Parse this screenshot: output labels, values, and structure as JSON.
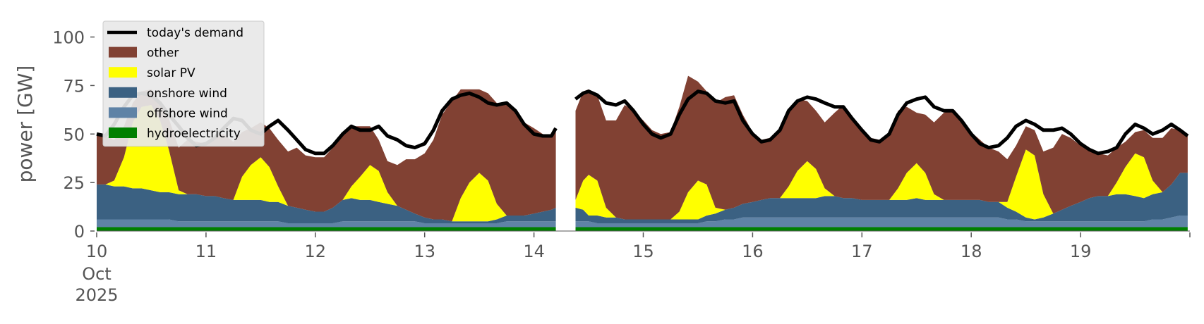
{
  "chart_data": {
    "type": "area",
    "ylabel": "power [GW]",
    "ylim": [
      0,
      110
    ],
    "xlim": [
      0,
      10
    ],
    "grid": false,
    "legend_placement": "upper-left",
    "y_ticks": [
      "0",
      "25",
      "50",
      "75",
      "100"
    ],
    "x_ticks": [
      {
        "day": 0,
        "label": "10",
        "month": "Oct",
        "year": "2025"
      },
      {
        "day": 1,
        "label": "11"
      },
      {
        "day": 2,
        "label": "12"
      },
      {
        "day": 3,
        "label": "13"
      },
      {
        "day": 4,
        "label": "14"
      },
      {
        "day": 5,
        "label": "15"
      },
      {
        "day": 6,
        "label": "16"
      },
      {
        "day": 7,
        "label": "17"
      },
      {
        "day": 8,
        "label": "18"
      },
      {
        "day": 9,
        "label": "19"
      }
    ],
    "gap": {
      "start_day": 4.22,
      "end_day": 4.36
    },
    "x_days": [
      0.0,
      0.08,
      0.16,
      0.25,
      0.33,
      0.41,
      0.5,
      0.58,
      0.66,
      0.75,
      0.83,
      0.91,
      1.0,
      1.08,
      1.16,
      1.25,
      1.33,
      1.41,
      1.5,
      1.58,
      1.66,
      1.75,
      1.83,
      1.91,
      2.0,
      2.08,
      2.16,
      2.25,
      2.33,
      2.41,
      2.5,
      2.58,
      2.66,
      2.75,
      2.83,
      2.91,
      3.0,
      3.08,
      3.16,
      3.25,
      3.33,
      3.41,
      3.5,
      3.58,
      3.66,
      3.75,
      3.83,
      3.91,
      4.0,
      4.08,
      4.16,
      4.2,
      4.38,
      4.45,
      4.5,
      4.58,
      4.66,
      4.75,
      4.83,
      4.91,
      5.0,
      5.08,
      5.16,
      5.25,
      5.33,
      5.41,
      5.5,
      5.58,
      5.66,
      5.75,
      5.83,
      5.91,
      6.0,
      6.08,
      6.16,
      6.25,
      6.33,
      6.41,
      6.5,
      6.58,
      6.66,
      6.75,
      6.83,
      6.91,
      7.0,
      7.08,
      7.16,
      7.25,
      7.33,
      7.41,
      7.5,
      7.58,
      7.66,
      7.75,
      7.83,
      7.91,
      8.0,
      8.08,
      8.16,
      8.25,
      8.33,
      8.41,
      8.5,
      8.58,
      8.66,
      8.75,
      8.83,
      8.91,
      9.0,
      9.08,
      9.16,
      9.25,
      9.33,
      9.41,
      9.5,
      9.58,
      9.66,
      9.75,
      9.83,
      9.91,
      9.98
    ],
    "series": [
      {
        "name": "today's demand",
        "kind": "line",
        "color": "#000000",
        "values": [
          50,
          49,
          55,
          64,
          70,
          71,
          70,
          66,
          60,
          54,
          48,
          44,
          45,
          48,
          53,
          58,
          57,
          52,
          50,
          54,
          57,
          52,
          47,
          42,
          40,
          40,
          44,
          50,
          54,
          52,
          52,
          54,
          49,
          47,
          44,
          43,
          45,
          52,
          62,
          68,
          70,
          71,
          69,
          66,
          65,
          66,
          62,
          55,
          50,
          49,
          49,
          53,
          68,
          71,
          72,
          70,
          66,
          65,
          67,
          62,
          55,
          50,
          48,
          50,
          60,
          68,
          72,
          71,
          67,
          66,
          67,
          57,
          50,
          46,
          47,
          52,
          62,
          67,
          69,
          68,
          66,
          64,
          64,
          58,
          52,
          47,
          46,
          50,
          60,
          66,
          68,
          69,
          64,
          62,
          62,
          57,
          50,
          45,
          43,
          44,
          48,
          54,
          57,
          55,
          52,
          52,
          53,
          50,
          45,
          42,
          40,
          41,
          43,
          50,
          55,
          53,
          50,
          52,
          55,
          52,
          49
        ]
      },
      {
        "name": "other",
        "kind": "area",
        "color": "#814133",
        "values": [
          26,
          25,
          21,
          16,
          10,
          8,
          8,
          10,
          16,
          22,
          28,
          27,
          27,
          31,
          33,
          30,
          23,
          19,
          18,
          20,
          24,
          28,
          31,
          28,
          28,
          28,
          31,
          33,
          31,
          26,
          20,
          16,
          16,
          21,
          26,
          28,
          33,
          41,
          54,
          62,
          56,
          48,
          43,
          45,
          52,
          57,
          54,
          48,
          44,
          40,
          38,
          40,
          46,
          46,
          44,
          44,
          45,
          50,
          59,
          56,
          51,
          46,
          44,
          45,
          54,
          60,
          51,
          48,
          54,
          58,
          58,
          46,
          36,
          31,
          31,
          34,
          40,
          37,
          31,
          30,
          34,
          43,
          48,
          42,
          37,
          32,
          31,
          33,
          40,
          34,
          26,
          30,
          37,
          45,
          46,
          41,
          35,
          31,
          28,
          26,
          22,
          16,
          12,
          13,
          22,
          34,
          39,
          35,
          29,
          25,
          22,
          21,
          18,
          13,
          11,
          14,
          22,
          28,
          29,
          22,
          19
        ]
      },
      {
        "name": "solar PV",
        "kind": "area",
        "color": "#ffff00",
        "values": [
          0,
          0,
          3,
          15,
          34,
          42,
          44,
          37,
          22,
          2,
          0,
          0,
          0,
          0,
          0,
          0,
          12,
          18,
          22,
          18,
          8,
          0,
          0,
          0,
          0,
          0,
          0,
          0,
          6,
          12,
          18,
          16,
          6,
          0,
          0,
          0,
          0,
          0,
          0,
          0,
          12,
          20,
          25,
          21,
          8,
          0,
          0,
          0,
          0,
          0,
          0,
          0,
          4,
          15,
          21,
          18,
          5,
          0,
          0,
          0,
          0,
          0,
          0,
          0,
          4,
          14,
          20,
          16,
          3,
          0,
          0,
          0,
          0,
          0,
          0,
          0,
          6,
          14,
          19,
          15,
          4,
          0,
          0,
          0,
          0,
          0,
          0,
          0,
          6,
          14,
          18,
          14,
          3,
          0,
          0,
          0,
          0,
          0,
          0,
          0,
          3,
          18,
          35,
          33,
          12,
          0,
          0,
          0,
          0,
          0,
          0,
          0,
          6,
          14,
          22,
          21,
          7,
          0,
          0,
          0,
          0
        ]
      },
      {
        "name": "onshore wind",
        "kind": "area",
        "color": "#3b6182",
        "values": [
          18,
          18,
          17,
          17,
          16,
          16,
          15,
          14,
          14,
          14,
          14,
          14,
          13,
          13,
          12,
          11,
          11,
          11,
          11,
          10,
          10,
          9,
          8,
          7,
          6,
          6,
          8,
          11,
          12,
          11,
          11,
          10,
          9,
          8,
          6,
          4,
          3,
          2,
          2,
          1,
          1,
          1,
          1,
          1,
          2,
          3,
          3,
          3,
          4,
          5,
          6,
          7,
          7,
          6,
          3,
          4,
          3,
          3,
          2,
          2,
          2,
          2,
          2,
          2,
          2,
          2,
          2,
          3,
          4,
          5,
          6,
          7,
          8,
          9,
          10,
          10,
          10,
          10,
          10,
          10,
          11,
          11,
          10,
          10,
          9,
          9,
          9,
          9,
          9,
          9,
          10,
          9,
          9,
          9,
          9,
          9,
          9,
          9,
          8,
          8,
          6,
          4,
          2,
          1,
          2,
          4,
          6,
          8,
          10,
          12,
          13,
          13,
          14,
          14,
          13,
          12,
          13,
          14,
          17,
          22,
          22
        ]
      },
      {
        "name": "offshore wind",
        "kind": "area",
        "color": "#5f83a6",
        "values": [
          4,
          4,
          4,
          4,
          4,
          4,
          4,
          4,
          4,
          3,
          3,
          3,
          3,
          3,
          3,
          3,
          3,
          3,
          3,
          3,
          3,
          2,
          2,
          2,
          2,
          2,
          2,
          3,
          3,
          3,
          3,
          3,
          3,
          3,
          3,
          3,
          2,
          2,
          2,
          2,
          2,
          2,
          2,
          2,
          2,
          3,
          3,
          3,
          3,
          3,
          3,
          3,
          3,
          3,
          3,
          2,
          2,
          2,
          2,
          2,
          2,
          2,
          2,
          2,
          2,
          2,
          2,
          3,
          3,
          4,
          4,
          5,
          5,
          5,
          5,
          5,
          5,
          5,
          5,
          5,
          5,
          5,
          5,
          5,
          5,
          5,
          5,
          5,
          5,
          5,
          5,
          5,
          5,
          5,
          5,
          5,
          5,
          5,
          5,
          5,
          4,
          4,
          3,
          3,
          3,
          3,
          3,
          3,
          3,
          3,
          3,
          3,
          3,
          3,
          3,
          3,
          4,
          4,
          5,
          6,
          6
        ]
      },
      {
        "name": "hydroelectricity",
        "kind": "area",
        "color": "#008000",
        "values": [
          2,
          2,
          2,
          2,
          2,
          2,
          2,
          2,
          2,
          2,
          2,
          2,
          2,
          2,
          2,
          2,
          2,
          2,
          2,
          2,
          2,
          2,
          2,
          2,
          2,
          2,
          2,
          2,
          2,
          2,
          2,
          2,
          2,
          2,
          2,
          2,
          2,
          2,
          2,
          2,
          2,
          2,
          2,
          2,
          2,
          2,
          2,
          2,
          2,
          2,
          2,
          2,
          2,
          2,
          2,
          2,
          2,
          2,
          2,
          2,
          2,
          2,
          2,
          2,
          2,
          2,
          2,
          2,
          2,
          2,
          2,
          2,
          2,
          2,
          2,
          2,
          2,
          2,
          2,
          2,
          2,
          2,
          2,
          2,
          2,
          2,
          2,
          2,
          2,
          2,
          2,
          2,
          2,
          2,
          2,
          2,
          2,
          2,
          2,
          2,
          2,
          2,
          2,
          2,
          2,
          2,
          2,
          2,
          2,
          2,
          2,
          2,
          2,
          2,
          2,
          2,
          2,
          2,
          2,
          2,
          2
        ]
      }
    ],
    "legend": [
      {
        "label": "today's demand",
        "kind": "line",
        "color": "#000000"
      },
      {
        "label": "other",
        "kind": "patch",
        "color": "#814133"
      },
      {
        "label": "solar PV",
        "kind": "patch",
        "color": "#ffff00"
      },
      {
        "label": "onshore wind",
        "kind": "patch",
        "color": "#3b6182"
      },
      {
        "label": "offshore wind",
        "kind": "patch",
        "color": "#5f83a6"
      },
      {
        "label": "hydroelectricity",
        "kind": "patch",
        "color": "#008000"
      }
    ]
  }
}
